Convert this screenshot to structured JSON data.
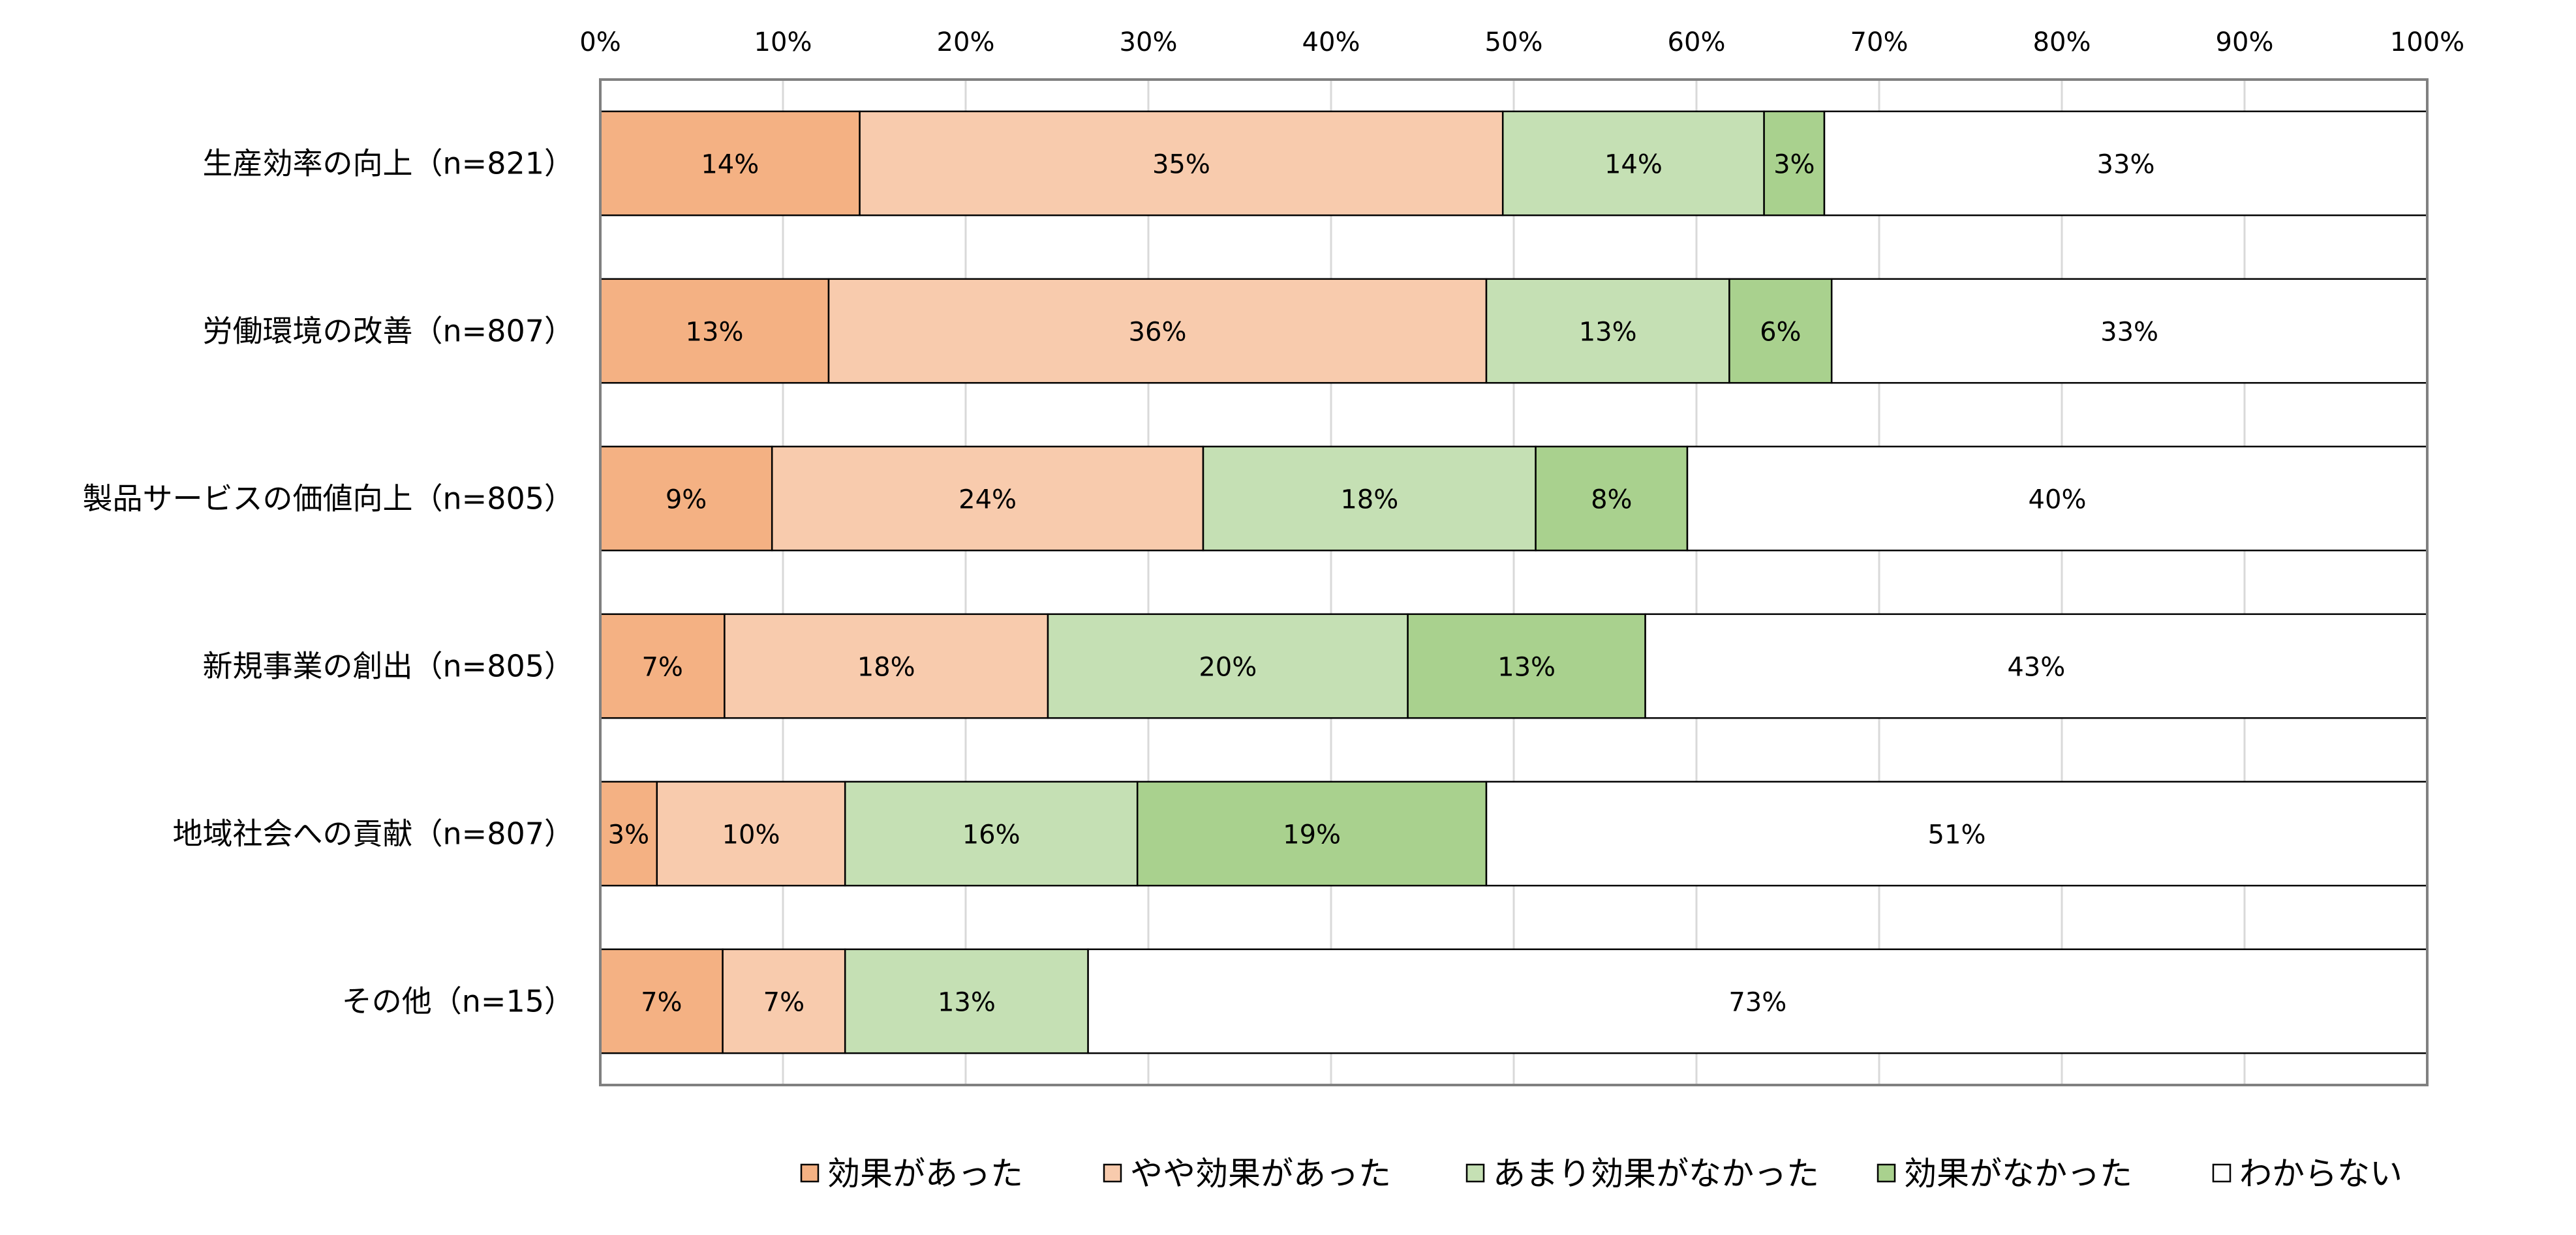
{
  "chart_data": {
    "type": "bar",
    "orientation": "horizontal",
    "stacked": "percent",
    "title": "",
    "xlabel": "",
    "ylabel": "",
    "xlim": [
      0,
      100
    ],
    "x_ticks": [
      "0%",
      "10%",
      "20%",
      "30%",
      "40%",
      "50%",
      "60%",
      "70%",
      "80%",
      "90%",
      "100%"
    ],
    "grid": "vertical",
    "legend_position": "bottom",
    "categories": [
      "生産効率の向上（n=821）",
      "労働環境の改善（n=807）",
      "製品サービスの価値向上（n=805）",
      "新規事業の創出（n=805）",
      "地域社会への貢献（n=807）",
      "その他（n=15）"
    ],
    "series": [
      {
        "name": "効果があった",
        "color": "#F4B183",
        "values": [
          14.2,
          12.5,
          9.4,
          6.8,
          3.1,
          6.7
        ],
        "labels": [
          "14%",
          "13%",
          "9%",
          "7%",
          "3%",
          "7%"
        ]
      },
      {
        "name": "やや効果があった",
        "color": "#F8CBAD",
        "values": [
          35.2,
          36.0,
          23.6,
          17.7,
          10.3,
          6.7
        ],
        "labels": [
          "35%",
          "36%",
          "24%",
          "18%",
          "10%",
          "7%"
        ]
      },
      {
        "name": "あまり効果がなかった",
        "color": "#C5E0B4",
        "values": [
          14.3,
          13.3,
          18.2,
          19.7,
          16.0,
          13.3
        ],
        "labels": [
          "14%",
          "13%",
          "18%",
          "20%",
          "16%",
          "13%"
        ]
      },
      {
        "name": "効果がなかった",
        "color": "#A9D18E",
        "values": [
          3.3,
          5.6,
          8.3,
          13.0,
          19.1,
          0
        ],
        "labels": [
          "3%",
          "6%",
          "8%",
          "13%",
          "19%",
          ""
        ]
      },
      {
        "name": "わからない",
        "color": "#FFFFFF",
        "values": [
          33.0,
          32.6,
          40.5,
          42.8,
          51.5,
          73.3
        ],
        "labels": [
          "33%",
          "33%",
          "40%",
          "43%",
          "51%",
          "73%"
        ]
      }
    ]
  }
}
